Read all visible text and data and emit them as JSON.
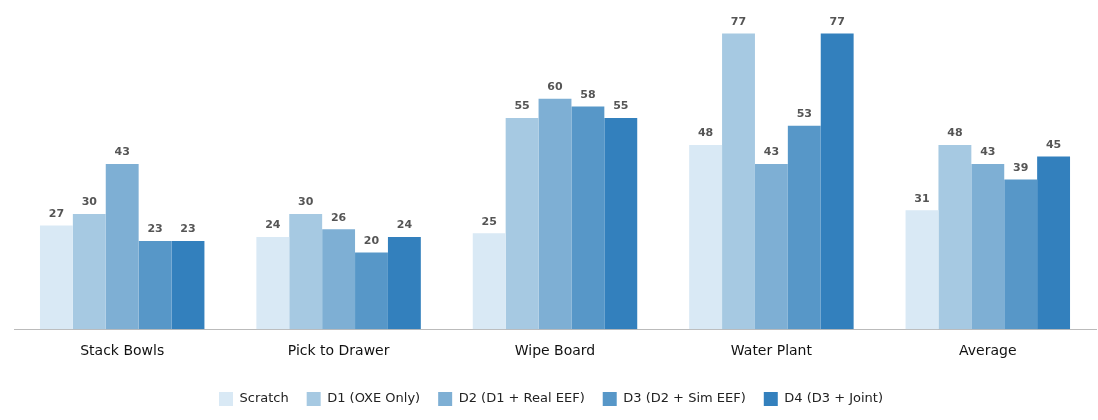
{
  "chart_data": {
    "type": "bar",
    "categories": [
      "Stack Bowls",
      "Pick to Drawer",
      "Wipe Board",
      "Water Plant",
      "Average"
    ],
    "series": [
      {
        "name": "Scratch",
        "color": "#d9e9f5",
        "values": [
          27,
          24,
          25,
          48,
          31
        ]
      },
      {
        "name": "D1 (OXE Only)",
        "color": "#a6c9e2",
        "values": [
          30,
          30,
          55,
          77,
          48
        ]
      },
      {
        "name": "D2 (D1 + Real EEF)",
        "color": "#7eafd4",
        "values": [
          43,
          26,
          60,
          43,
          43
        ]
      },
      {
        "name": "D3 (D2 + Sim EEF)",
        "color": "#5797c8",
        "values": [
          23,
          20,
          58,
          53,
          39
        ]
      },
      {
        "name": "D4 (D3 + Joint)",
        "color": "#3380bd",
        "values": [
          23,
          24,
          55,
          77,
          45
        ]
      }
    ],
    "data_labels": true,
    "grid": false,
    "legend": "bottom",
    "tick_labels": "x"
  }
}
